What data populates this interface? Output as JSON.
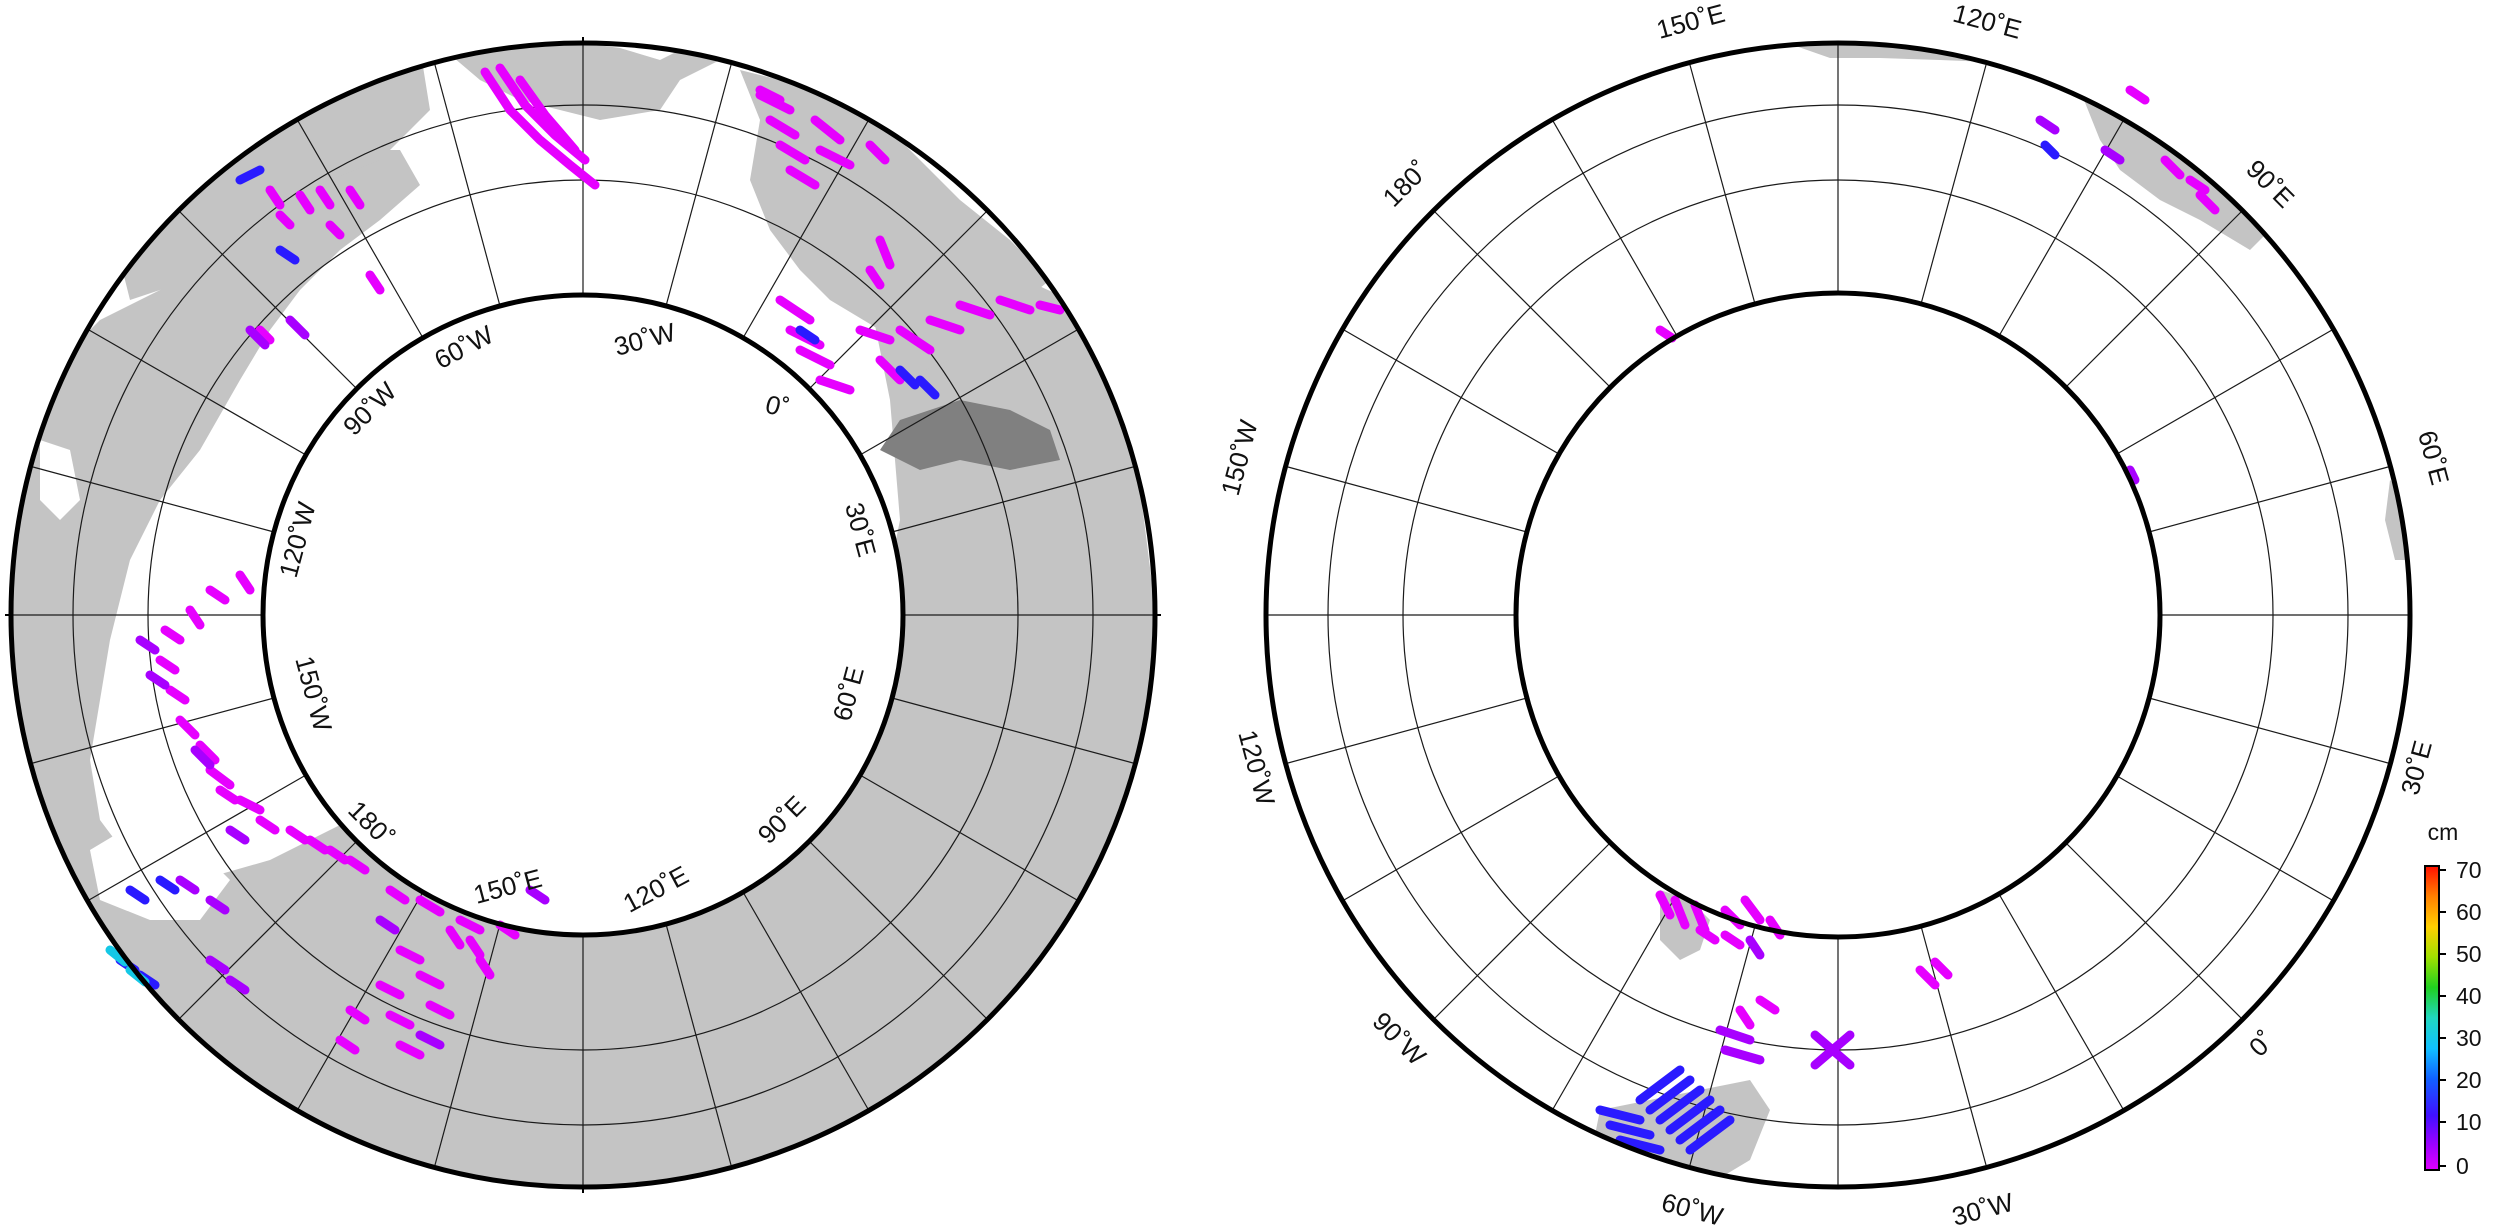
{
  "colors": {
    "land": "#c4c4c4",
    "land_dark": "#808080",
    "ocean": "#ffffff",
    "track": "#e600ff",
    "track_violet": "#a800ff",
    "track_blue": "#2a1aff",
    "track_cyan": "#14c8e6",
    "graticule": "#1a1a1a",
    "frame": "#000000"
  },
  "left_map": {
    "labels": {
      "w60": "60˚W",
      "w30": "30˚W",
      "w90": "90˚W",
      "zero": "0˚",
      "w120": "120˚W",
      "e30": "30˚E",
      "w150": "150˚W",
      "e60": "60˚E",
      "e90": "90˚E",
      "d180": "180˚",
      "e150": "150˚E",
      "e120": "120˚E"
    }
  },
  "right_map": {
    "labels": {
      "e150": "150˚E",
      "e120": "120˚E",
      "d180": "180˚",
      "e90": "90˚E",
      "w150": "150˚W",
      "e60": "60˚E",
      "w120": "120˚W",
      "e30": "30˚E",
      "w90": "90˚W",
      "zero": "0˚",
      "w60": "60˚W",
      "w30": "30˚W"
    }
  },
  "colorbar": {
    "unit": "cm",
    "ticks": [
      "70",
      "60",
      "50",
      "40",
      "30",
      "20",
      "10",
      "0"
    ],
    "range": [
      0,
      70
    ]
  }
}
